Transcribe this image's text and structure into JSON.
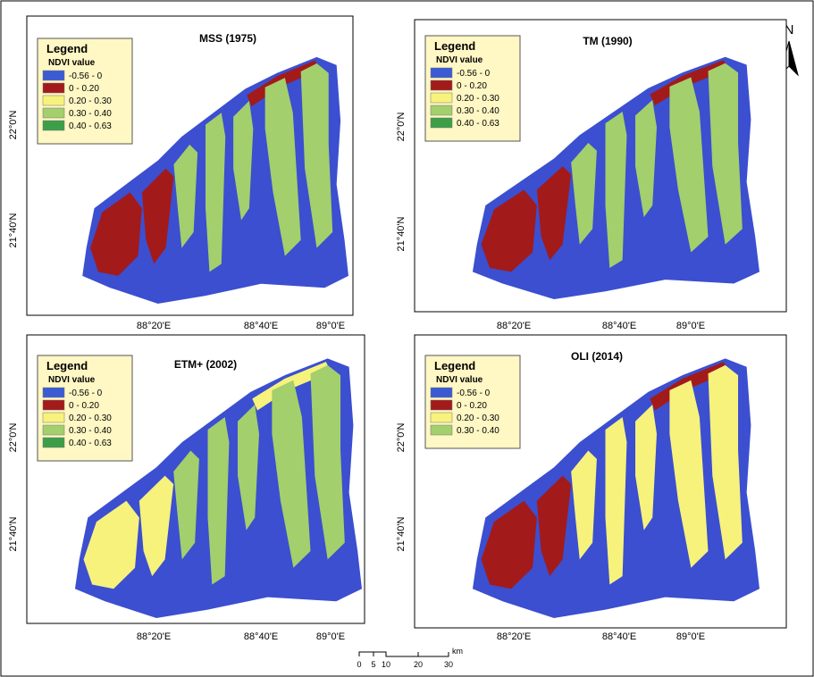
{
  "panels": [
    {
      "title": "MSS (1975)",
      "legend": {
        "title": "Legend",
        "subtitle": "NDVI value",
        "items": [
          {
            "label": "-0.56 - 0",
            "color": "#3b5bd5"
          },
          {
            "label": "0 - 0.20",
            "color": "#a31a1a"
          },
          {
            "label": "0.20 - 0.30",
            "color": "#f6f27c"
          },
          {
            "label": "0.30 - 0.40",
            "color": "#a3cf6c"
          },
          {
            "label": "0.40 - 0.63",
            "color": "#3c9f48"
          }
        ]
      },
      "lat_labels": [
        "22°0'N",
        "21°40'N"
      ],
      "lon_labels": [
        "88°20'E",
        "88°40'E",
        "89°0'E"
      ]
    },
    {
      "title": "TM (1990)",
      "legend": {
        "title": "Legend",
        "subtitle": "NDVI value",
        "items": [
          {
            "label": "-0.56 - 0",
            "color": "#3b5bd5"
          },
          {
            "label": "0 - 0.20",
            "color": "#a31a1a"
          },
          {
            "label": "0.20 - 0.30",
            "color": "#f6f27c"
          },
          {
            "label": "0.30 - 0.40",
            "color": "#a3cf6c"
          },
          {
            "label": "0.40 - 0.63",
            "color": "#3c9f48"
          }
        ]
      },
      "lat_labels": [
        "22°0'N",
        "21°40'N"
      ],
      "lon_labels": [
        "88°20'E",
        "88°40'E",
        "89°0'E"
      ]
    },
    {
      "title": "ETM+ (2002)",
      "legend": {
        "title": "Legend",
        "subtitle": "NDVI value",
        "items": [
          {
            "label": "-0.56 - 0",
            "color": "#3b5bd5"
          },
          {
            "label": "0 - 0.20",
            "color": "#a31a1a"
          },
          {
            "label": "0.20 - 0.30",
            "color": "#f6f27c"
          },
          {
            "label": "0.30 - 0.40",
            "color": "#a3cf6c"
          },
          {
            "label": "0.40 - 0.63",
            "color": "#3c9f48"
          }
        ]
      },
      "lat_labels": [
        "22°0'N",
        "21°40'N"
      ],
      "lon_labels": [
        "88°20'E",
        "88°40'E",
        "89°0'E"
      ]
    },
    {
      "title": "OLI (2014)",
      "legend": {
        "title": "Legend",
        "subtitle": "NDVI value",
        "items": [
          {
            "label": "-0.56 - 0",
            "color": "#3b5bd5"
          },
          {
            "label": "0 - 0.20",
            "color": "#a31a1a"
          },
          {
            "label": "0.20 - 0.30",
            "color": "#f6f27c"
          },
          {
            "label": "0.30 - 0.40",
            "color": "#a3cf6c"
          }
        ]
      },
      "lat_labels": [
        "22°0'N",
        "21°40'N"
      ],
      "lon_labels": [
        "88°20'E",
        "88°40'E",
        "89°0'E"
      ]
    }
  ],
  "north": "N",
  "scale_bar": {
    "ticks": [
      "0",
      "5",
      "10",
      "20",
      "30"
    ],
    "unit": "km"
  }
}
